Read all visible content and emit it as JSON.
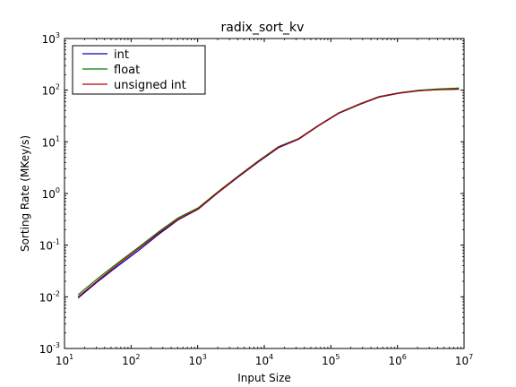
{
  "chart_data": {
    "type": "line",
    "title": "radix_sort_kv",
    "xlabel": "Input Size",
    "ylabel": "Sorting Rate (MKey/s)",
    "xscale": "log",
    "yscale": "log",
    "xlim": [
      10,
      10000000
    ],
    "ylim": [
      0.001,
      1000
    ],
    "x_tick_labels": [
      {
        "base": "10",
        "exp": "1",
        "value": 10
      },
      {
        "base": "10",
        "exp": "2",
        "value": 100
      },
      {
        "base": "10",
        "exp": "3",
        "value": 1000
      },
      {
        "base": "10",
        "exp": "4",
        "value": 10000
      },
      {
        "base": "10",
        "exp": "5",
        "value": 100000
      },
      {
        "base": "10",
        "exp": "6",
        "value": 1000000
      },
      {
        "base": "10",
        "exp": "7",
        "value": 10000000
      }
    ],
    "y_tick_labels": [
      {
        "base": "10",
        "exp": "-3",
        "value": 0.001
      },
      {
        "base": "10",
        "exp": "-2",
        "value": 0.01
      },
      {
        "base": "10",
        "exp": "-1",
        "value": 0.1
      },
      {
        "base": "10",
        "exp": "0",
        "value": 1
      },
      {
        "base": "10",
        "exp": "1",
        "value": 10
      },
      {
        "base": "10",
        "exp": "2",
        "value": 100
      },
      {
        "base": "10",
        "exp": "3",
        "value": 1000
      }
    ],
    "x": [
      16,
      32,
      64,
      128,
      256,
      512,
      1024,
      2048,
      4096,
      8192,
      16384,
      32768,
      65536,
      131072,
      262144,
      524288,
      1048576,
      2097152,
      4194304,
      8388608
    ],
    "series": [
      {
        "name": "int",
        "color": "#0000bf",
        "values": [
          0.0095,
          0.02,
          0.04,
          0.078,
          0.16,
          0.31,
          0.5,
          1.05,
          2.1,
          4.1,
          7.7,
          11.2,
          20.5,
          35.5,
          52.0,
          73.0,
          87.0,
          97.0,
          103.0,
          106.0
        ]
      },
      {
        "name": "float",
        "color": "#007f00",
        "values": [
          0.011,
          0.023,
          0.046,
          0.09,
          0.18,
          0.34,
          0.53,
          1.1,
          2.2,
          4.3,
          8.1,
          11.6,
          21.0,
          36.5,
          53.5,
          75.0,
          89.0,
          100.0,
          106.0,
          110.0
        ]
      },
      {
        "name": "unsigned int",
        "color": "#bf0000",
        "values": [
          0.01,
          0.021,
          0.043,
          0.085,
          0.17,
          0.32,
          0.51,
          1.07,
          2.15,
          4.2,
          7.9,
          11.4,
          20.8,
          36.0,
          52.5,
          74.0,
          88.0,
          98.0,
          102.0,
          104.0
        ]
      }
    ],
    "legend_position": "top-left",
    "grid": false
  }
}
